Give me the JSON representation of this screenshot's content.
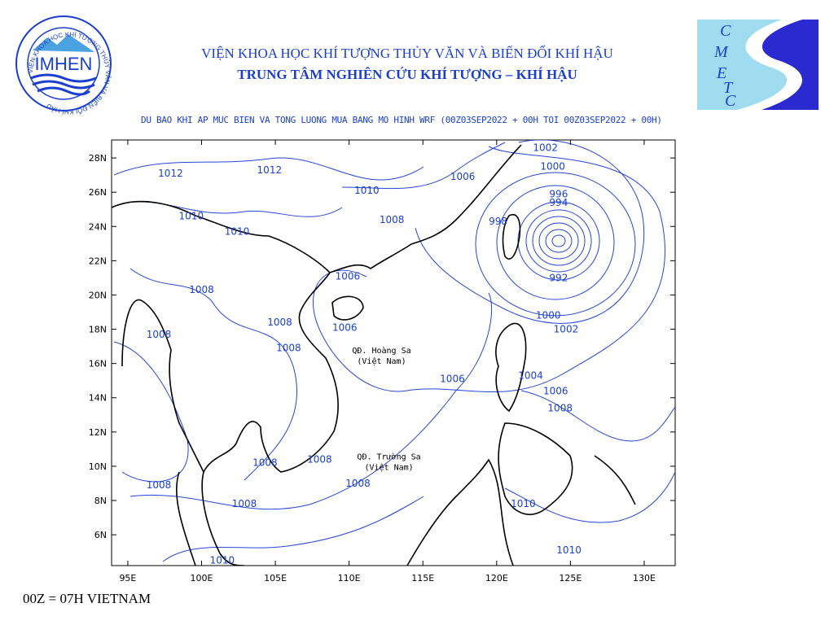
{
  "header": {
    "line1": "VIỆN KHOA HỌC KHÍ TƯỢNG THỦY VĂN VÀ BIẾN ĐỔI KHÍ HẬU",
    "line2": "TRUNG TÂM NGHIÊN CỨU KHÍ TƯỢNG – KHÍ HẬU"
  },
  "logo_left": {
    "name": "IMHEN",
    "ring_text": "VIỆN KHOA HỌC KHÍ TƯỢNG THỦY VĂN VÀ BIẾN ĐỔI KHÍ HẬU"
  },
  "logo_right": {
    "letters": [
      "C",
      "M",
      "E",
      "T",
      "C"
    ]
  },
  "map": {
    "subtitle": "DU BAO KHI AP MUC BIEN VA TONG LUONG MUA BANG MO HINH WRF (00Z03SEP2022 + 00H TOI 00Z03SEP2022 + 00H)",
    "xlim": [
      93.9,
      132.1
    ],
    "ylim": [
      4.2,
      29.05
    ],
    "xticks": [
      {
        "value": 95,
        "label": "95E"
      },
      {
        "value": 100,
        "label": "100E"
      },
      {
        "value": 105,
        "label": "105E"
      },
      {
        "value": 110,
        "label": "110E"
      },
      {
        "value": 115,
        "label": "115E"
      },
      {
        "value": 120,
        "label": "120E"
      },
      {
        "value": 125,
        "label": "125E"
      },
      {
        "value": 130,
        "label": "130E"
      }
    ],
    "yticks": [
      {
        "value": 6,
        "label": "6N"
      },
      {
        "value": 8,
        "label": "8N"
      },
      {
        "value": 10,
        "label": "10N"
      },
      {
        "value": 12,
        "label": "12N"
      },
      {
        "value": 14,
        "label": "14N"
      },
      {
        "value": 16,
        "label": "16N"
      },
      {
        "value": 18,
        "label": "18N"
      },
      {
        "value": 20,
        "label": "20N"
      },
      {
        "value": 22,
        "label": "22N"
      },
      {
        "value": 24,
        "label": "24N"
      },
      {
        "value": 26,
        "label": "26N"
      },
      {
        "value": 28,
        "label": "28N"
      }
    ],
    "contour_labels": [
      {
        "value": 1002,
        "lon": 123.3,
        "lat": 28.6
      },
      {
        "value": 1000,
        "lon": 123.8,
        "lat": 27.5
      },
      {
        "value": 996,
        "lon": 124.2,
        "lat": 25.9
      },
      {
        "value": 994,
        "lon": 124.2,
        "lat": 25.4
      },
      {
        "value": 998,
        "lon": 120.1,
        "lat": 24.3
      },
      {
        "value": 992,
        "lon": 124.2,
        "lat": 21.0
      },
      {
        "value": 1000,
        "lon": 123.5,
        "lat": 18.8
      },
      {
        "value": 1002,
        "lon": 124.7,
        "lat": 18.0
      },
      {
        "value": 1004,
        "lon": 122.3,
        "lat": 15.3
      },
      {
        "value": 1006,
        "lon": 124.0,
        "lat": 14.4
      },
      {
        "value": 1008,
        "lon": 124.3,
        "lat": 13.4
      },
      {
        "value": 1006,
        "lon": 117.7,
        "lat": 26.9
      },
      {
        "value": 1008,
        "lon": 112.9,
        "lat": 24.4
      },
      {
        "value": 1010,
        "lon": 111.2,
        "lat": 26.1
      },
      {
        "value": 1012,
        "lon": 104.6,
        "lat": 27.3
      },
      {
        "value": 1012,
        "lon": 97.9,
        "lat": 27.1
      },
      {
        "value": 1010,
        "lon": 99.3,
        "lat": 24.6
      },
      {
        "value": 1010,
        "lon": 102.4,
        "lat": 23.7
      },
      {
        "value": 1006,
        "lon": 109.9,
        "lat": 21.1
      },
      {
        "value": 1006,
        "lon": 109.7,
        "lat": 18.1
      },
      {
        "value": 1008,
        "lon": 100.0,
        "lat": 20.3
      },
      {
        "value": 1008,
        "lon": 97.1,
        "lat": 17.7
      },
      {
        "value": 1008,
        "lon": 105.3,
        "lat": 18.4
      },
      {
        "value": 1008,
        "lon": 105.9,
        "lat": 16.9
      },
      {
        "value": 1006,
        "lon": 117.0,
        "lat": 15.1
      },
      {
        "value": 1008,
        "lon": 104.3,
        "lat": 10.2
      },
      {
        "value": 1008,
        "lon": 108.0,
        "lat": 10.4
      },
      {
        "value": 1008,
        "lon": 97.1,
        "lat": 8.9
      },
      {
        "value": 1008,
        "lon": 110.6,
        "lat": 9.0
      },
      {
        "value": 1008,
        "lon": 102.9,
        "lat": 7.8
      },
      {
        "value": 1010,
        "lon": 121.8,
        "lat": 7.8
      },
      {
        "value": 1010,
        "lon": 124.9,
        "lat": 5.1
      },
      {
        "value": 1010,
        "lon": 101.4,
        "lat": 4.5
      }
    ],
    "places": [
      {
        "name": "QĐ. Hoàng Sa",
        "note": "(Việt Nam)",
        "lon": 112.2,
        "lat": 16.6
      },
      {
        "name": "QĐ. Trường Sa",
        "note": "(Việt Nam)",
        "lon": 112.7,
        "lat": 10.4
      }
    ]
  },
  "footer": "00Z = 07H VIETNAM"
}
